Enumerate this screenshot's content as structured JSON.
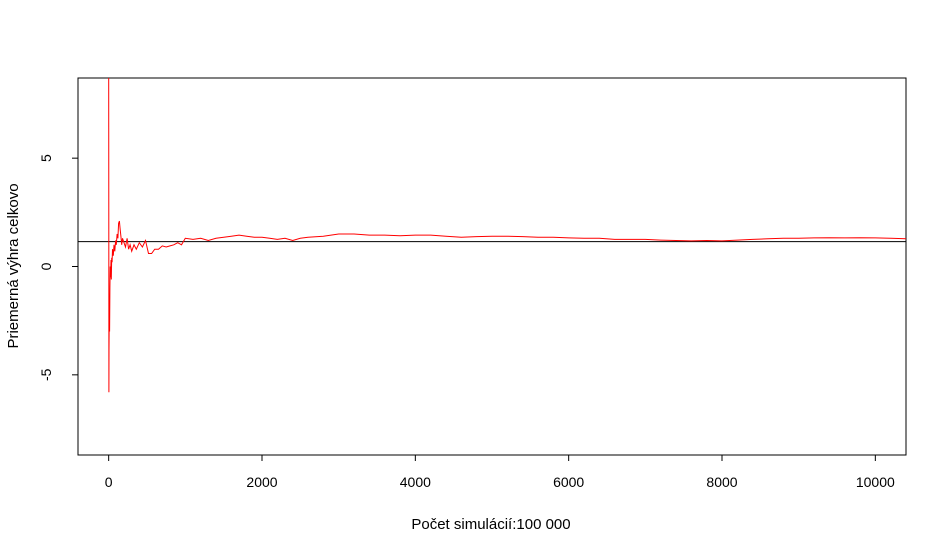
{
  "chart_data": {
    "type": "line",
    "title": "",
    "xlabel": "Počet simulácií:100 000",
    "ylabel": "Priemerná výhra celkovo",
    "xlim": [
      -400,
      10400
    ],
    "ylim": [
      -8.7,
      8.7
    ],
    "x_ticks": [
      0,
      2000,
      4000,
      6000,
      8000,
      10000
    ],
    "x_tick_labels": [
      "0",
      "2000",
      "4000",
      "6000",
      "8000",
      "10000"
    ],
    "y_ticks": [
      -5,
      0,
      5
    ],
    "y_tick_labels": [
      "-5",
      "0",
      "5"
    ],
    "reference_line": {
      "y": 1.15,
      "color": "#000000"
    },
    "series": [
      {
        "color": "#ff0000",
        "x": [
          1,
          2,
          3,
          5,
          8,
          12,
          16,
          20,
          25,
          30,
          35,
          40,
          45,
          50,
          60,
          70,
          80,
          90,
          100,
          110,
          120,
          130,
          140,
          150,
          160,
          170,
          180,
          200,
          220,
          240,
          260,
          280,
          300,
          330,
          360,
          400,
          440,
          480,
          520,
          560,
          600,
          650,
          700,
          750,
          800,
          850,
          900,
          950,
          1000,
          1100,
          1200,
          1300,
          1400,
          1500,
          1600,
          1700,
          1800,
          1900,
          2000,
          2100,
          2200,
          2300,
          2400,
          2500,
          2600,
          2800,
          3000,
          3200,
          3400,
          3600,
          3800,
          4000,
          4200,
          4400,
          4600,
          4800,
          5000,
          5200,
          5400,
          5600,
          5800,
          6000,
          6200,
          6400,
          6600,
          6800,
          7000,
          7200,
          7400,
          7600,
          7800,
          8000,
          8200,
          8400,
          8600,
          8800,
          9000,
          9200,
          9400,
          9600,
          9800,
          10000,
          10200,
          10400
        ],
        "y": [
          8.7,
          2.5,
          -5.8,
          -3.9,
          -2.0,
          -3.0,
          -1.0,
          0.0,
          -0.5,
          0.3,
          -0.6,
          0.4,
          0.2,
          0.8,
          0.5,
          1.0,
          0.7,
          1.2,
          1.0,
          1.5,
          1.3,
          2.0,
          2.1,
          1.7,
          1.4,
          1.0,
          1.3,
          1.1,
          0.9,
          1.3,
          0.8,
          1.0,
          0.7,
          1.0,
          0.8,
          1.1,
          0.9,
          1.2,
          0.6,
          0.6,
          0.8,
          0.8,
          0.95,
          0.9,
          0.95,
          1.0,
          1.1,
          1.0,
          1.3,
          1.25,
          1.3,
          1.2,
          1.3,
          1.35,
          1.4,
          1.45,
          1.4,
          1.35,
          1.35,
          1.3,
          1.25,
          1.3,
          1.2,
          1.3,
          1.35,
          1.4,
          1.5,
          1.5,
          1.45,
          1.45,
          1.42,
          1.45,
          1.45,
          1.4,
          1.35,
          1.38,
          1.4,
          1.4,
          1.38,
          1.35,
          1.35,
          1.32,
          1.3,
          1.3,
          1.25,
          1.25,
          1.25,
          1.22,
          1.2,
          1.18,
          1.2,
          1.18,
          1.22,
          1.25,
          1.28,
          1.3,
          1.3,
          1.32,
          1.33,
          1.32,
          1.33,
          1.32,
          1.3,
          1.28
        ]
      }
    ],
    "grid": false,
    "legend": "none"
  }
}
